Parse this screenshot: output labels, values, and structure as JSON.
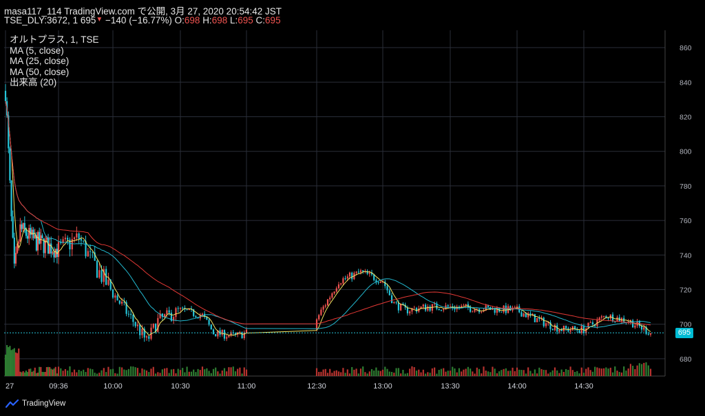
{
  "header": {
    "publish_line": "masa117_114 TradingView.com で公開, 3月 27, 2020 20:54:42 JST",
    "symbol_prefix": "TSE_DLY:3672, 1 695",
    "change_arrow": "▼",
    "change_text": "−140 (−16.77%)",
    "o_label": "O:",
    "o_value": "698",
    "h_label": "H:",
    "h_value": "698",
    "l_label": "L:",
    "l_value": "695",
    "c_label": "C:",
    "c_value": "695"
  },
  "legend": {
    "title": "オルトプラス, 1, TSE",
    "ma5": "MA (5, close)",
    "ma25": "MA (25, close)",
    "ma50": "MA (50, close)",
    "volume": "出来高 (20)"
  },
  "last_price_label": "695",
  "footer": {
    "brand": "TradingView",
    "logo_icon": "tradingview-logo-icon"
  },
  "colors": {
    "up": "#ef5350",
    "down": "#26c6da",
    "ma5": "#f5e663",
    "ma25": "#22b8cf",
    "ma50": "#e53935",
    "vol_up": "#b7332f",
    "vol_down": "#2e7d32",
    "grid": "#2a2e39",
    "background": "#000000"
  },
  "chart_data": {
    "type": "candlestick",
    "ylim": [
      670,
      870
    ],
    "y_ticks": [
      680,
      700,
      720,
      740,
      760,
      780,
      800,
      820,
      840,
      860
    ],
    "x_tick_labels": [
      "27",
      "09:36",
      "10:00",
      "10:30",
      "11:00",
      "12:30",
      "13:00",
      "13:30",
      "14:00",
      "14:30"
    ],
    "grid": true,
    "last_price": 695,
    "session_breaks_drawn": [
      "11:00 → 12:30"
    ],
    "close_anchor_points": [
      {
        "time": "09:00",
        "close": 835
      },
      {
        "time": "09:01",
        "close": 818
      },
      {
        "time": "09:04",
        "close": 760
      },
      {
        "time": "09:06",
        "close": 730
      },
      {
        "time": "09:10",
        "close": 755
      },
      {
        "time": "09:20",
        "close": 748
      },
      {
        "time": "09:30",
        "close": 745
      },
      {
        "time": "09:36",
        "close": 743
      },
      {
        "time": "09:45",
        "close": 750
      },
      {
        "time": "09:50",
        "close": 738
      },
      {
        "time": "10:00",
        "close": 718
      },
      {
        "time": "10:10",
        "close": 700
      },
      {
        "time": "10:15",
        "close": 690
      },
      {
        "time": "10:20",
        "close": 702
      },
      {
        "time": "10:30",
        "close": 708
      },
      {
        "time": "10:40",
        "close": 705
      },
      {
        "time": "10:45",
        "close": 695
      },
      {
        "time": "10:55",
        "close": 693
      },
      {
        "time": "11:00",
        "close": 695
      },
      {
        "time": "12:30",
        "close": 703
      },
      {
        "time": "12:40",
        "close": 725
      },
      {
        "time": "12:50",
        "close": 730
      },
      {
        "time": "13:00",
        "close": 725
      },
      {
        "time": "13:05",
        "close": 712
      },
      {
        "time": "13:10",
        "close": 708
      },
      {
        "time": "13:20",
        "close": 710
      },
      {
        "time": "13:30",
        "close": 710
      },
      {
        "time": "13:45",
        "close": 709
      },
      {
        "time": "14:00",
        "close": 708
      },
      {
        "time": "14:10",
        "close": 702
      },
      {
        "time": "14:20",
        "close": 697
      },
      {
        "time": "14:30",
        "close": 697
      },
      {
        "time": "14:40",
        "close": 705
      },
      {
        "time": "14:50",
        "close": 702
      },
      {
        "time": "15:00",
        "close": 695
      }
    ],
    "series": [
      {
        "name": "MA (5, close)"
      },
      {
        "name": "MA (25, close)"
      },
      {
        "name": "MA (50, close)"
      },
      {
        "name": "出来高 (20)"
      }
    ]
  }
}
